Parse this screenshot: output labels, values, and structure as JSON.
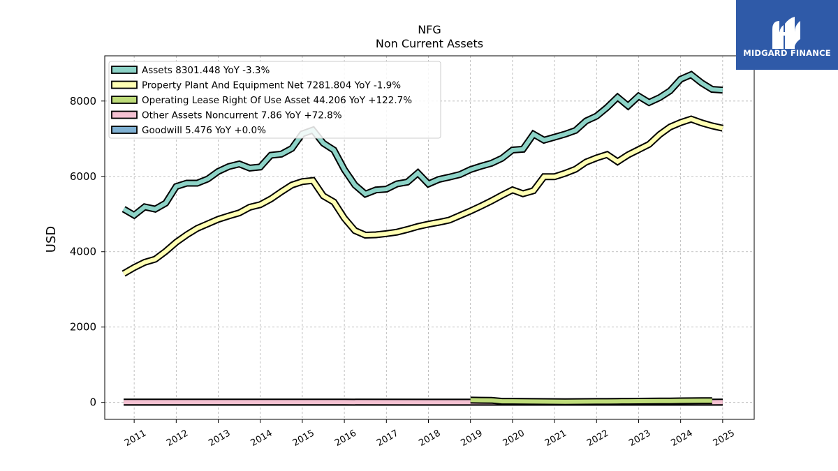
{
  "chart_data": {
    "type": "line",
    "title": "NFG",
    "subtitle": "Non Current  Assets",
    "ylabel": "USD",
    "xlabel": "",
    "ylim": [
      -450,
      9200
    ],
    "xlim": [
      2010.3,
      2025.75
    ],
    "yticks": [
      0,
      2000,
      4000,
      6000,
      8000
    ],
    "xtick_labels": [
      "2011",
      "2012",
      "2013",
      "2014",
      "2015",
      "2016",
      "2017",
      "2018",
      "2019",
      "2020",
      "2021",
      "2022",
      "2023",
      "2024",
      "2025"
    ],
    "grid": true,
    "legend_position": "top-left",
    "series": [
      {
        "name": "Assets  8301.448 YoY -3.3%",
        "color": "#8dd3c7",
        "x": [
          2010.75,
          2011.0,
          2011.25,
          2011.5,
          2011.75,
          2012.0,
          2012.25,
          2012.5,
          2012.75,
          2013.0,
          2013.25,
          2013.5,
          2013.75,
          2014.0,
          2014.25,
          2014.5,
          2014.75,
          2015.0,
          2015.25,
          2015.5,
          2015.75,
          2016.0,
          2016.25,
          2016.5,
          2016.75,
          2017.0,
          2017.25,
          2017.5,
          2017.75,
          2018.0,
          2018.25,
          2018.5,
          2018.75,
          2019.0,
          2019.25,
          2019.5,
          2019.75,
          2020.0,
          2020.25,
          2020.5,
          2020.75,
          2021.0,
          2021.25,
          2021.5,
          2021.75,
          2022.0,
          2022.25,
          2022.5,
          2022.75,
          2023.0,
          2023.25,
          2023.5,
          2023.75,
          2024.0,
          2024.25,
          2024.5,
          2024.75,
          2025.0
        ],
        "values": [
          5130,
          4970,
          5190,
          5130,
          5290,
          5730,
          5820,
          5820,
          5930,
          6130,
          6260,
          6330,
          6220,
          6250,
          6560,
          6590,
          6740,
          7130,
          7230,
          6880,
          6700,
          6180,
          5770,
          5530,
          5640,
          5660,
          5800,
          5850,
          6090,
          5800,
          5920,
          5980,
          6050,
          6180,
          6270,
          6350,
          6480,
          6700,
          6720,
          7120,
          6960,
          7040,
          7120,
          7220,
          7470,
          7600,
          7830,
          8100,
          7870,
          8130,
          7960,
          8090,
          8270,
          8580,
          8700,
          8480,
          8310,
          8290
        ]
      },
      {
        "name": "Property Plant And Equipment Net  7281.804 YoY -1.9%",
        "color": "#ffffb3",
        "x": [
          2010.75,
          2011.0,
          2011.25,
          2011.5,
          2011.75,
          2012.0,
          2012.25,
          2012.5,
          2012.75,
          2013.0,
          2013.25,
          2013.5,
          2013.75,
          2014.0,
          2014.25,
          2014.5,
          2014.75,
          2015.0,
          2015.25,
          2015.5,
          2015.75,
          2016.0,
          2016.25,
          2016.5,
          2016.75,
          2017.0,
          2017.25,
          2017.5,
          2017.75,
          2018.0,
          2018.25,
          2018.5,
          2018.75,
          2019.0,
          2019.25,
          2019.5,
          2019.75,
          2020.0,
          2020.25,
          2020.5,
          2020.75,
          2021.0,
          2021.25,
          2021.5,
          2021.75,
          2022.0,
          2022.25,
          2022.5,
          2022.75,
          2023.0,
          2023.25,
          2023.5,
          2023.75,
          2024.0,
          2024.25,
          2024.5,
          2024.75,
          2025.0
        ],
        "values": [
          3420,
          3580,
          3720,
          3800,
          4010,
          4250,
          4450,
          4620,
          4740,
          4860,
          4950,
          5030,
          5180,
          5250,
          5400,
          5590,
          5770,
          5860,
          5890,
          5480,
          5320,
          4890,
          4560,
          4440,
          4450,
          4480,
          4520,
          4590,
          4670,
          4730,
          4780,
          4840,
          4960,
          5080,
          5210,
          5350,
          5500,
          5640,
          5540,
          5620,
          5990,
          5990,
          6080,
          6190,
          6380,
          6490,
          6580,
          6390,
          6570,
          6710,
          6850,
          7110,
          7310,
          7430,
          7520,
          7420,
          7340,
          7280
        ]
      },
      {
        "name": "Operating Lease Right Of Use Asset  44.206 YoY +122.7%",
        "color": "#bedc7a",
        "x": [
          2019.0,
          2019.25,
          2019.5,
          2019.75,
          2020.0,
          2020.25,
          2020.5,
          2020.75,
          2021.0,
          2021.25,
          2021.5,
          2021.75,
          2022.0,
          2022.25,
          2022.5,
          2022.75,
          2023.0,
          2023.25,
          2023.5,
          2023.75,
          2024.0,
          2024.25,
          2024.5,
          2024.75
        ],
        "values": [
          62,
          58,
          56,
          30,
          30,
          26,
          24,
          22,
          20,
          19,
          21,
          22,
          24,
          25,
          27,
          29,
          32,
          34,
          36,
          38,
          40,
          42,
          44,
          44
        ]
      },
      {
        "name": "Other Assets Noncurrent  7.86 YoY +72.8%",
        "color": "#f4c1d2",
        "x": [
          2010.75,
          2012.0,
          2014.0,
          2016.0,
          2018.0,
          2020.0,
          2022.0,
          2024.0,
          2025.0
        ],
        "values": [
          10,
          9,
          8,
          7,
          6,
          5,
          5,
          6,
          8
        ]
      },
      {
        "name": "Goodwill  5.476 YoY +0.0%",
        "color": "#80b1d3",
        "x": [
          2010.75,
          2025.0
        ],
        "values": [
          5.5,
          5.5
        ]
      }
    ]
  },
  "logo": {
    "text": "MIDGARD FINANCE",
    "color": "#2f5aa8"
  }
}
